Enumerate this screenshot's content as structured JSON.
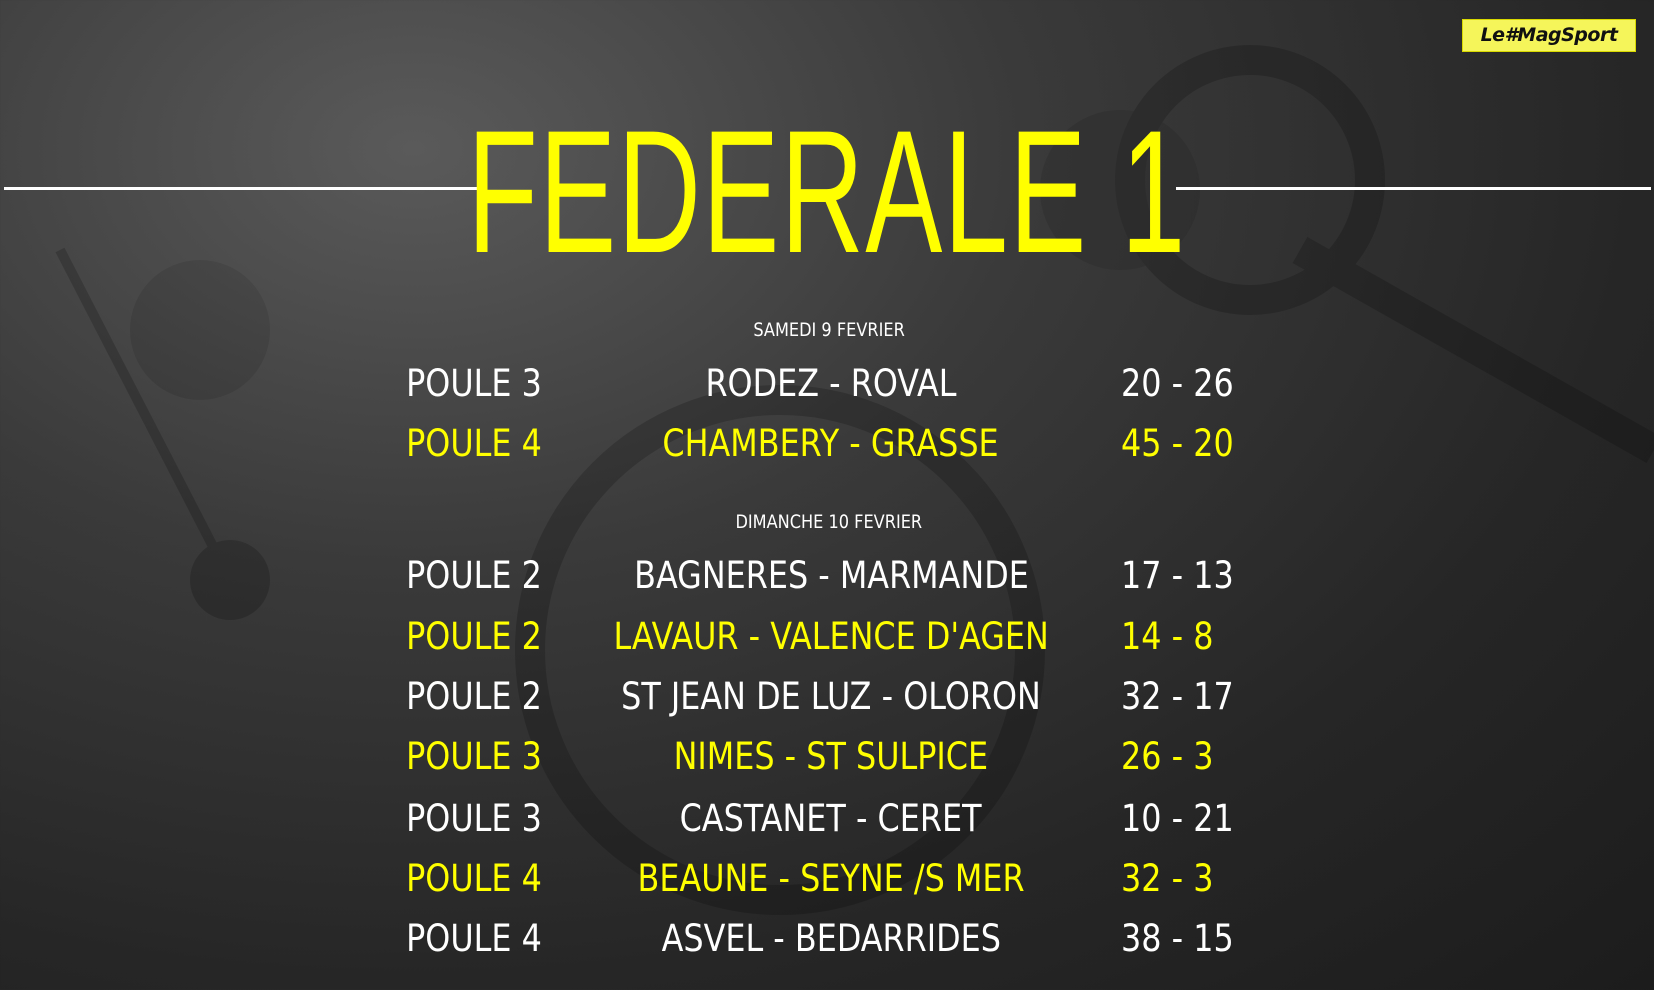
{
  "logo": {
    "text": "Le#MagSport"
  },
  "title": "FEDERALE 1",
  "colors": {
    "accent": "#ffff00",
    "text": "#ffffff",
    "background": "#2a2a2a"
  },
  "days": [
    {
      "label": "SAMEDI 9 FEVRIER",
      "matches": [
        {
          "poule": "POULE 3",
          "match": "RODEZ - ROVAL",
          "score": "20 - 26",
          "color": "white"
        },
        {
          "poule": "POULE 4",
          "match": "CHAMBERY - GRASSE",
          "score": "45 - 20",
          "color": "yellow"
        }
      ]
    },
    {
      "label": "DIMANCHE 10 FEVRIER",
      "matches": [
        {
          "poule": "POULE 2",
          "match": "BAGNERES - MARMANDE",
          "score": "17 - 13",
          "color": "white"
        },
        {
          "poule": "POULE 2",
          "match": "LAVAUR - VALENCE D'AGEN",
          "score": "14 - 8",
          "color": "yellow"
        },
        {
          "poule": "POULE 2",
          "match": "ST JEAN DE LUZ - OLORON",
          "score": "32 - 17",
          "color": "white"
        },
        {
          "poule": "POULE 3",
          "match": "NIMES - ST SULPICE",
          "score": "26 - 3",
          "color": "yellow"
        },
        {
          "poule": "POULE 3",
          "match": "CASTANET - CERET",
          "score": "10 - 21",
          "color": "white"
        },
        {
          "poule": "POULE 4",
          "match": "BEAUNE - SEYNE /S MER",
          "score": "32 - 3",
          "color": "yellow"
        },
        {
          "poule": "POULE 4",
          "match": "ASVEL - BEDARRIDES",
          "score": "38 - 15",
          "color": "white"
        }
      ]
    }
  ]
}
